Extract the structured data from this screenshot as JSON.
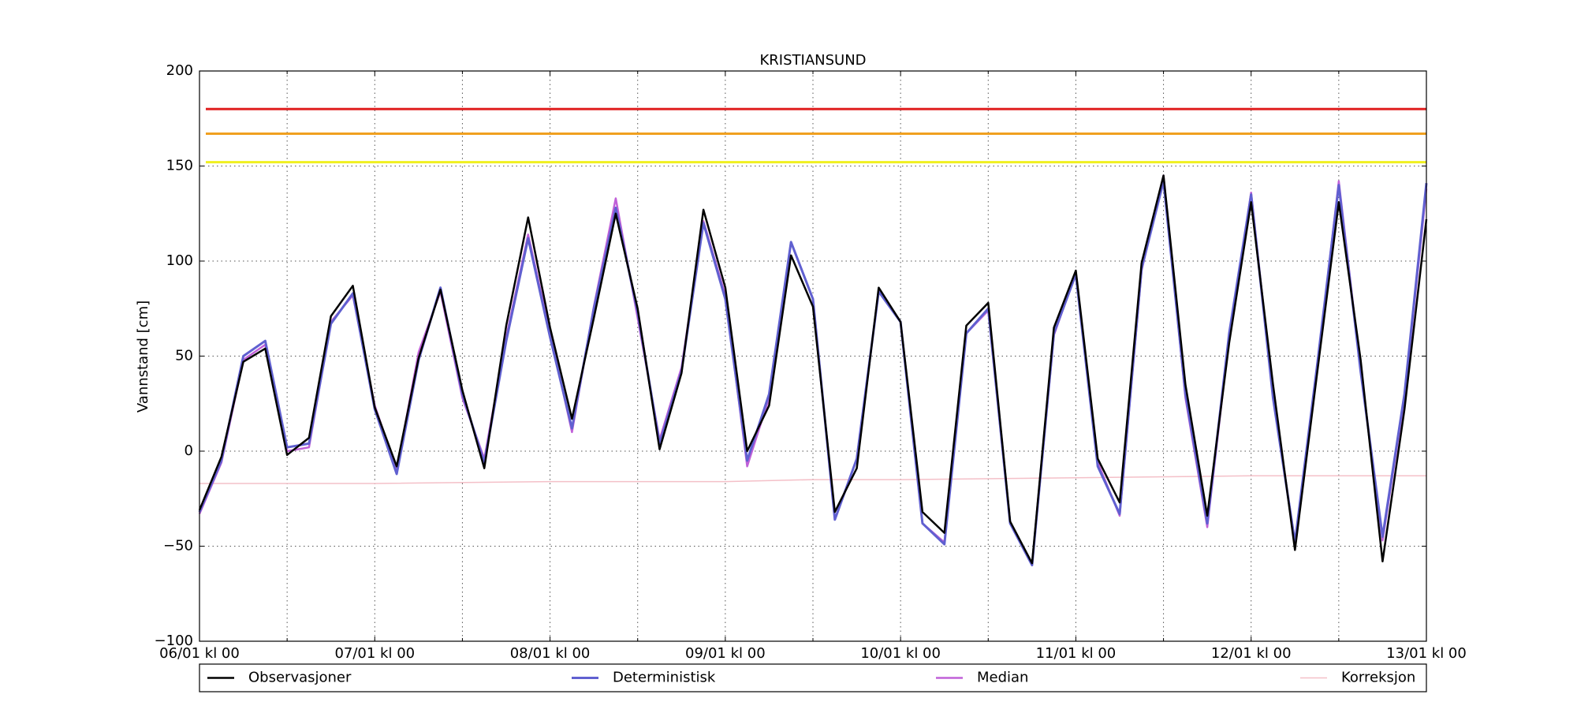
{
  "chart_data": {
    "type": "line",
    "title": "KRISTIANSUND",
    "ylabel": "Vannstand [cm]",
    "x": [
      0,
      3,
      6,
      9,
      12,
      15,
      18,
      21,
      24,
      27,
      30,
      33,
      36,
      39,
      42,
      45,
      48,
      51,
      54,
      57,
      60,
      63,
      66,
      69,
      72,
      75,
      78,
      81,
      84,
      87,
      90,
      93,
      96,
      99,
      102,
      105,
      108,
      111,
      114,
      117,
      120,
      123,
      126,
      129,
      132,
      135,
      138,
      141,
      144,
      147,
      150,
      153,
      156,
      159,
      162,
      165,
      168
    ],
    "series": [
      {
        "name": "Observasjoner",
        "color": "#000000",
        "width": 2.5,
        "values": [
          -31,
          -3,
          47,
          54,
          -2,
          7,
          71,
          87,
          23,
          -8,
          49,
          85,
          32,
          -9,
          66,
          123,
          65,
          17,
          70,
          125,
          75,
          1,
          41,
          127,
          86,
          0,
          24,
          103,
          76,
          -32,
          -9,
          86,
          68,
          -32,
          -43,
          66,
          78,
          -37,
          -59,
          65,
          95,
          -4,
          -27,
          99,
          145,
          35,
          -34,
          57,
          131,
          35,
          -52,
          40,
          131,
          48,
          -58,
          22,
          122
        ]
      },
      {
        "name": "Deterministisk",
        "color": "#6060d0",
        "width": 3,
        "values": [
          -32,
          -5,
          50,
          58,
          2,
          4,
          67,
          83,
          22,
          -12,
          48,
          86,
          30,
          -6,
          58,
          112,
          60,
          12,
          75,
          128,
          73,
          4,
          42,
          120,
          80,
          -5,
          30,
          110,
          80,
          -36,
          -4,
          84,
          68,
          -38,
          -49,
          62,
          75,
          -38,
          -60,
          62,
          93,
          -8,
          -33,
          96,
          142,
          30,
          -38,
          62,
          135,
          28,
          -48,
          44,
          140,
          42,
          -45,
          30,
          141
        ]
      },
      {
        "name": "Median",
        "color": "#c060d8",
        "width": 2.5,
        "values": [
          -33,
          -6,
          48,
          56,
          0,
          2,
          68,
          82,
          24,
          -10,
          52,
          84,
          28,
          -4,
          60,
          114,
          62,
          10,
          76,
          133,
          70,
          6,
          44,
          121,
          82,
          -8,
          28,
          110,
          80,
          -36,
          -4,
          84,
          68,
          -38,
          -48,
          62,
          74,
          -38,
          -60,
          61,
          94,
          -6,
          -34,
          95,
          145,
          28,
          -40,
          60,
          136,
          29,
          -48,
          42,
          142,
          43,
          -47,
          28,
          138
        ]
      },
      {
        "name": "Korreksjon",
        "color": "#f4c0c8",
        "width": 1.5,
        "x": [
          0,
          24,
          48,
          72,
          84,
          96,
          120,
          144,
          168
        ],
        "values": [
          -17,
          -17,
          -16,
          -16,
          -15,
          -15,
          -14,
          -13,
          -13
        ]
      }
    ],
    "hlines": [
      {
        "value": 180,
        "color": "#e02020"
      },
      {
        "value": 167,
        "color": "#f0a020"
      },
      {
        "value": 152,
        "color": "#f0f020"
      }
    ],
    "xlim": [
      0,
      168
    ],
    "xticks": [
      {
        "value": 0,
        "label": "06/01 kl 00"
      },
      {
        "value": 24,
        "label": "07/01 kl 00"
      },
      {
        "value": 48,
        "label": "08/01 kl 00"
      },
      {
        "value": 72,
        "label": "09/01 kl 00"
      },
      {
        "value": 96,
        "label": "10/01 kl 00"
      },
      {
        "value": 120,
        "label": "11/01 kl 00"
      },
      {
        "value": 144,
        "label": "12/01 kl 00"
      },
      {
        "value": 168,
        "label": "13/01 kl 00"
      }
    ],
    "x_minor_ticks": [
      12,
      36,
      60,
      84,
      108,
      132,
      156
    ],
    "ylim": [
      -100,
      200
    ],
    "yticks": [
      {
        "value": -100,
        "label": "−100"
      },
      {
        "value": -50,
        "label": "−50"
      },
      0,
      50,
      100,
      150,
      200
    ],
    "grid": true,
    "legend": "below"
  }
}
